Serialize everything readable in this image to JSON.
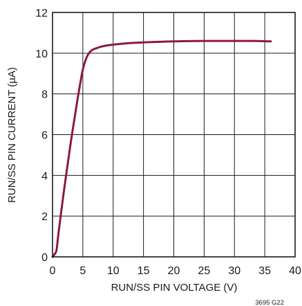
{
  "chart_data": {
    "type": "line",
    "title": "",
    "xlabel": "RUN/SS PIN VOLTAGE (V)",
    "ylabel": "RUN/SS PIN CURRENT (µA)",
    "xlim": [
      0,
      40
    ],
    "ylim": [
      0,
      12
    ],
    "x_ticks": [
      "0",
      "5",
      "10",
      "15",
      "20",
      "25",
      "30",
      "35",
      "40"
    ],
    "y_ticks": [
      "0",
      "2",
      "4",
      "6",
      "8",
      "10",
      "12"
    ],
    "grid": true,
    "legend": "none",
    "figure_id": "3695 G22",
    "colors": {
      "series": "#8b1a3a",
      "grid": "#1a1a1a",
      "axis": "#1a1a1a"
    },
    "series": [
      {
        "x": [
          0,
          0.5,
          0.7,
          1,
          2,
          3,
          4,
          4.5,
          5,
          5.5,
          6,
          6.5,
          7,
          7.5,
          8,
          9,
          10,
          12,
          15,
          20,
          25,
          30,
          33,
          36
        ],
        "y": [
          0,
          0.2,
          0.4,
          1.2,
          3.5,
          5.6,
          7.5,
          8.4,
          9.2,
          9.7,
          10.0,
          10.15,
          10.22,
          10.27,
          10.32,
          10.38,
          10.42,
          10.48,
          10.53,
          10.58,
          10.6,
          10.6,
          10.6,
          10.58
        ]
      }
    ]
  }
}
